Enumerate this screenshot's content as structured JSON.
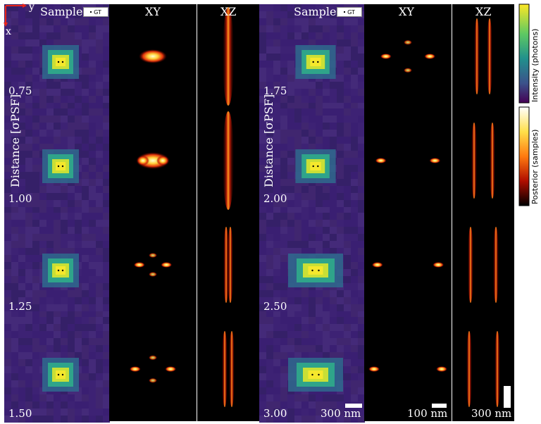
{
  "headers": {
    "sample": "Sample",
    "xy": "XY",
    "xz": "XZ",
    "gt": "GT"
  },
  "axes": {
    "y": "y",
    "x": "x"
  },
  "left_distances": [
    "0.75",
    "1.00",
    "1.25",
    "1.50"
  ],
  "right_distances": [
    "1.75",
    "2.00",
    "2.50",
    "3.00"
  ],
  "row_label": "Distance [σPSF]",
  "scalebars": {
    "sample": "300 nm",
    "xy": "100 nm",
    "xz": "300 nm"
  },
  "colorbars": {
    "intensity": "Intensity (photons)",
    "posterior": "Posterior (samples)"
  },
  "colors": {
    "sample_bg": "#3e1f7a",
    "psf_center": "#f5e82c",
    "xy_bg": "#000000",
    "red_axes": "#e8251b"
  }
}
